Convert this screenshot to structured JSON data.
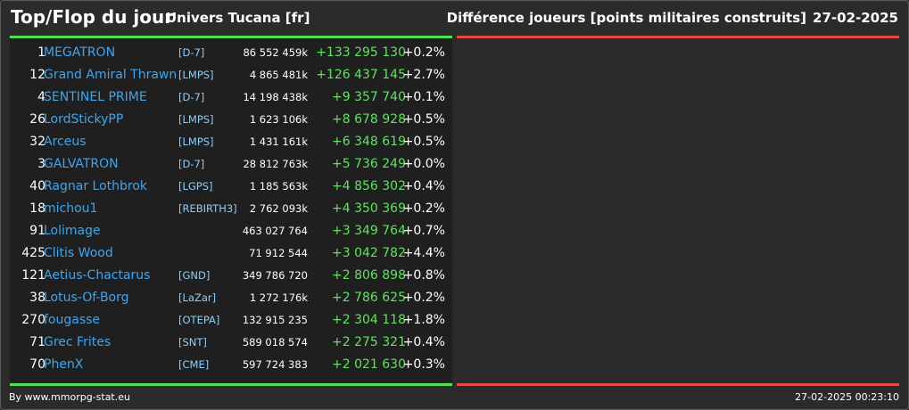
{
  "header": {
    "title": "Top/Flop du jour",
    "universe": "Univers Tucana [fr]",
    "metric": "Différence joueurs [points militaires construits]",
    "date": "27-02-2025"
  },
  "colors": {
    "background": "#2b2b2b",
    "panel": "#1f1f1f",
    "player_name": "#3fa6ee",
    "alliance": "#8fcdf5",
    "gain": "#5ee45e",
    "top_line": "#4ee24e",
    "flop_line": "#e04b44"
  },
  "top": [
    {
      "rank": "1",
      "name": "MEGATRON",
      "alliance": "[D-7]",
      "points": "86 552 459k",
      "diff": "+133 295 130",
      "pct": "+0.2%"
    },
    {
      "rank": "12",
      "name": "Grand Amiral Thrawn",
      "alliance": "[LMPS]",
      "points": "4 865 481k",
      "diff": "+126 437 145",
      "pct": "+2.7%"
    },
    {
      "rank": "4",
      "name": "SENTINEL PRIME",
      "alliance": "[D-7]",
      "points": "14 198 438k",
      "diff": "+9 357 740",
      "pct": "+0.1%"
    },
    {
      "rank": "26",
      "name": "LordStickyPP",
      "alliance": "[LMPS]",
      "points": "1 623 106k",
      "diff": "+8 678 928",
      "pct": "+0.5%"
    },
    {
      "rank": "32",
      "name": "Arceus",
      "alliance": "[LMPS]",
      "points": "1 431 161k",
      "diff": "+6 348 619",
      "pct": "+0.5%"
    },
    {
      "rank": "3",
      "name": "GALVATRON",
      "alliance": "[D-7]",
      "points": "28 812 763k",
      "diff": "+5 736 249",
      "pct": "+0.0%"
    },
    {
      "rank": "40",
      "name": "Ragnar Lothbrok",
      "alliance": "[LGPS]",
      "points": "1 185 563k",
      "diff": "+4 856 302",
      "pct": "+0.4%"
    },
    {
      "rank": "18",
      "name": "michou1",
      "alliance": "[REBIRTH3]",
      "points": "2 762 093k",
      "diff": "+4 350 369",
      "pct": "+0.2%"
    },
    {
      "rank": "91",
      "name": "Lolimage",
      "alliance": "",
      "points": "463 027 764",
      "diff": "+3 349 764",
      "pct": "+0.7%"
    },
    {
      "rank": "425",
      "name": "Clitis Wood",
      "alliance": "",
      "points": "71 912 544",
      "diff": "+3 042 782",
      "pct": "+4.4%"
    },
    {
      "rank": "121",
      "name": "Aetius-Chactarus",
      "alliance": "[GND]",
      "points": "349 786 720",
      "diff": "+2 806 898",
      "pct": "+0.8%"
    },
    {
      "rank": "38",
      "name": "Lotus-Of-Borg",
      "alliance": "[LaZar]",
      "points": "1 272 176k",
      "diff": "+2 786 625",
      "pct": "+0.2%"
    },
    {
      "rank": "270",
      "name": "fougasse",
      "alliance": "[OTEPA]",
      "points": "132 915 235",
      "diff": "+2 304 118",
      "pct": "+1.8%"
    },
    {
      "rank": "71",
      "name": "Grec Frites",
      "alliance": "[SNT]",
      "points": "589 018 574",
      "diff": "+2 275 321",
      "pct": "+0.4%"
    },
    {
      "rank": "70",
      "name": "PhenX",
      "alliance": "[CME]",
      "points": "597 724 383",
      "diff": "+2 021 630",
      "pct": "+0.3%"
    }
  ],
  "footer": {
    "source": "By www.mmorpg-stat.eu",
    "timestamp": "27-02-2025 00:23:10"
  }
}
